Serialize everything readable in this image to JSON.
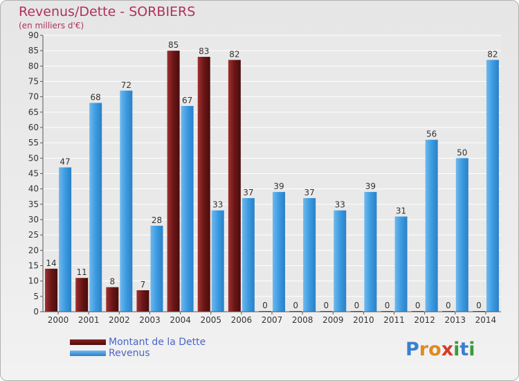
{
  "title": "Revenus/Dette - SORBIERS",
  "subtitle": "(en milliers d'€)",
  "logo": {
    "text": "Proxiti",
    "letters": [
      {
        "ch": "P",
        "color": "#3a7fd0"
      },
      {
        "ch": "r",
        "color": "#e08a20"
      },
      {
        "ch": "o",
        "color": "#e08a20"
      },
      {
        "ch": "x",
        "color": "#d63a2a"
      },
      {
        "ch": "i",
        "color": "#3a9a3a"
      },
      {
        "ch": "t",
        "color": "#3a7fd0"
      },
      {
        "ch": "i",
        "color": "#3a9a3a"
      }
    ]
  },
  "chart_data": {
    "type": "bar",
    "title": "Revenus/Dette - SORBIERS",
    "subtitle": "(en milliers d'€)",
    "categories": [
      "2000",
      "2001",
      "2002",
      "2003",
      "2004",
      "2005",
      "2006",
      "2007",
      "2008",
      "2009",
      "2010",
      "2011",
      "2012",
      "2013",
      "2014"
    ],
    "series": [
      {
        "name": "Montant de la Dette",
        "color": "#7a1e1e",
        "values": [
          14,
          11,
          8,
          7,
          85,
          83,
          82,
          0,
          0,
          0,
          0,
          0,
          0,
          0,
          0
        ]
      },
      {
        "name": "Revenus",
        "color": "#3c9be0",
        "values": [
          47,
          68,
          72,
          28,
          67,
          33,
          37,
          39,
          37,
          33,
          39,
          31,
          56,
          50,
          82
        ]
      }
    ],
    "ylim": [
      0,
      90
    ],
    "yticks": [
      0,
      5,
      10,
      15,
      20,
      25,
      30,
      35,
      40,
      45,
      50,
      55,
      60,
      65,
      70,
      75,
      80,
      85,
      90
    ],
    "grid": true,
    "legend": "bottom-left"
  }
}
